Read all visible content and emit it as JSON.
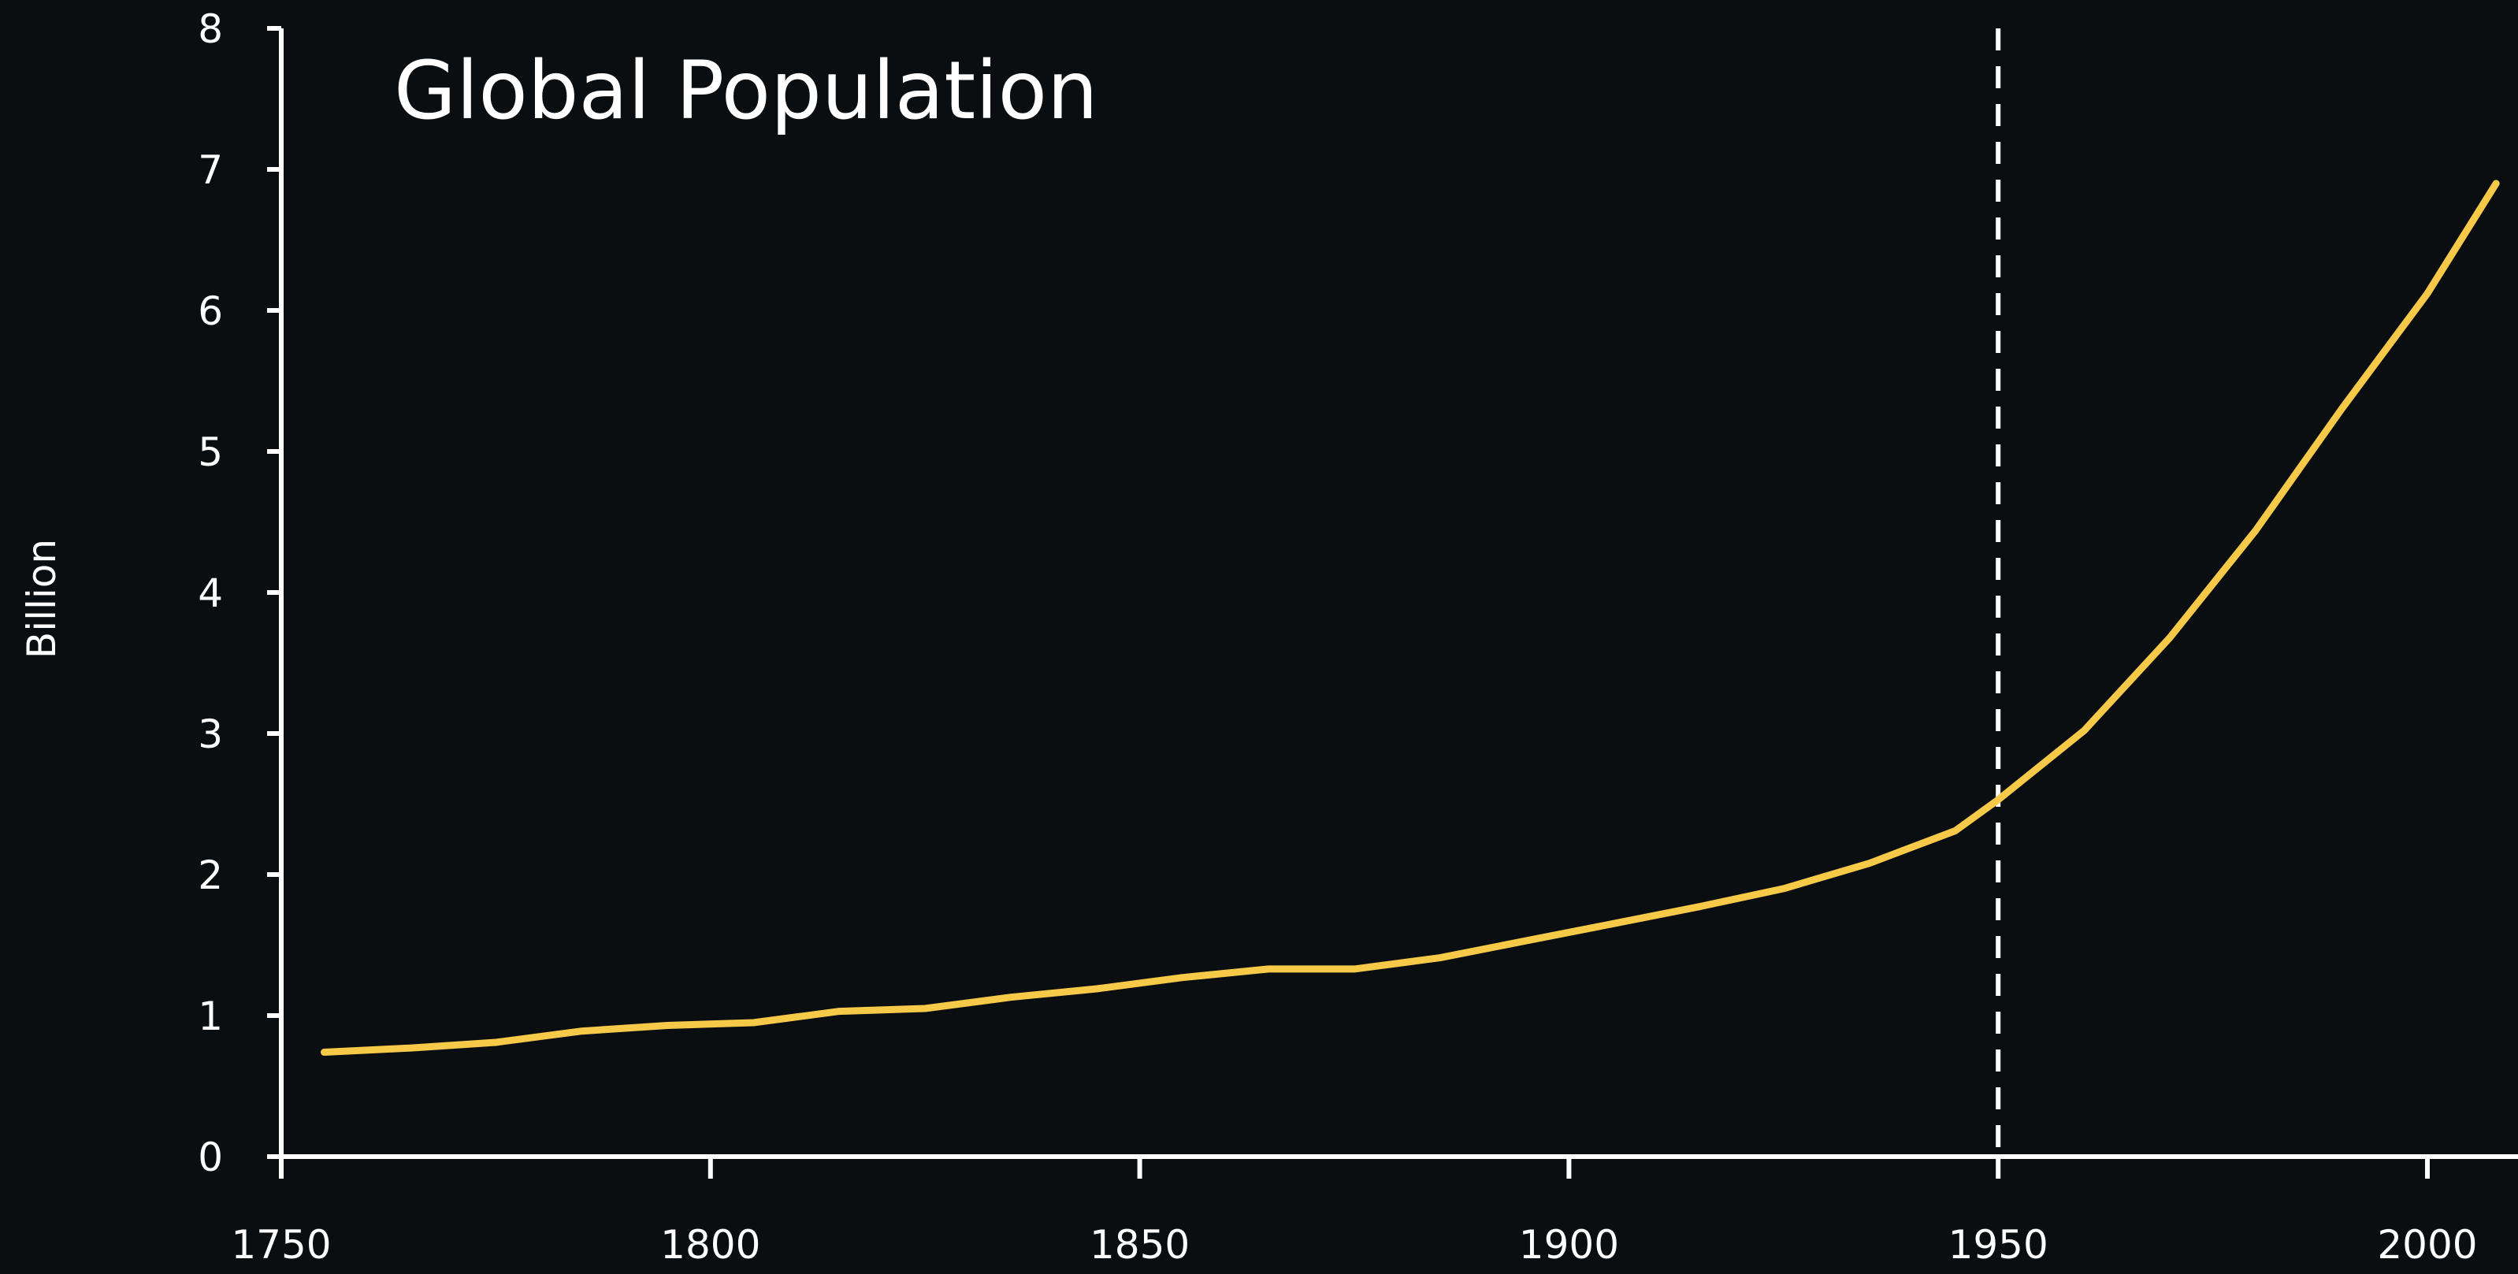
{
  "chart_data": {
    "type": "line",
    "title": "Global Population",
    "xlabel": "",
    "ylabel": "Billion",
    "xlim": [
      1750,
      2010
    ],
    "ylim": [
      0,
      8
    ],
    "x_ticks": [
      1750,
      1800,
      1850,
      1900,
      1950,
      2000
    ],
    "y_ticks": [
      0,
      1,
      2,
      3,
      4,
      5,
      6,
      7,
      8
    ],
    "grid": false,
    "legend": "none",
    "vertical_marker": {
      "x": 1950,
      "style": "dashed",
      "color": "#ffffff"
    },
    "series": [
      {
        "color": "#f7c948",
        "x": [
          1755,
          1765,
          1775,
          1785,
          1795,
          1805,
          1815,
          1825,
          1835,
          1845,
          1855,
          1865,
          1875,
          1885,
          1895,
          1905,
          1915,
          1925,
          1935,
          1945,
          1950,
          1960,
          1970,
          1980,
          1990,
          2000,
          2008
        ],
        "values": [
          0.74,
          0.77,
          0.81,
          0.89,
          0.93,
          0.95,
          1.03,
          1.05,
          1.13,
          1.19,
          1.27,
          1.33,
          1.33,
          1.41,
          1.53,
          1.65,
          1.77,
          1.9,
          2.08,
          2.31,
          2.53,
          3.02,
          3.68,
          4.44,
          5.3,
          6.12,
          6.9
        ]
      }
    ]
  }
}
